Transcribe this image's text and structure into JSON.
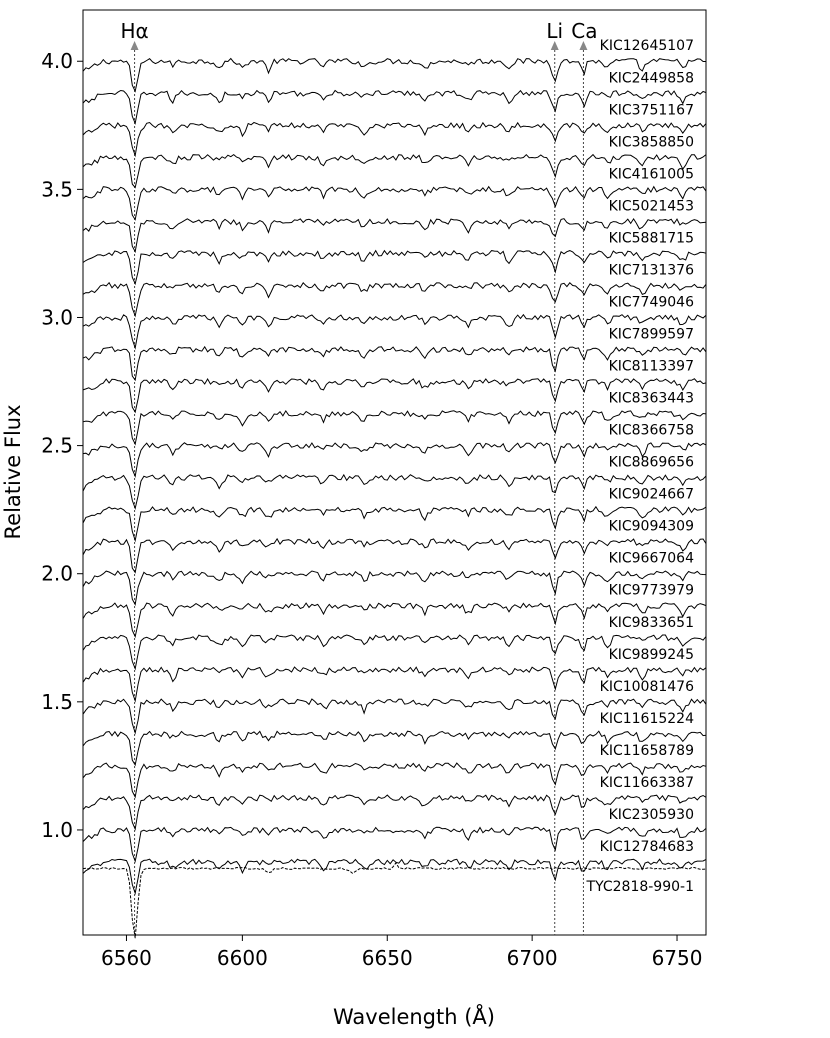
{
  "chart_data": {
    "type": "line",
    "title": "",
    "xlabel": "Wavelength (Å)",
    "ylabel": "Relative Flux",
    "xlim": [
      6545,
      6760
    ],
    "ylim": [
      0.59,
      4.2
    ],
    "x_ticks": [
      6560,
      6600,
      6650,
      6700,
      6750
    ],
    "y_ticks": [
      1.0,
      1.5,
      2.0,
      2.5,
      3.0,
      3.5,
      4.0
    ],
    "y_tick_labels": [
      "1.0",
      "1.5",
      "2.0",
      "2.5",
      "3.0",
      "3.5",
      "4.0"
    ],
    "grid": false,
    "legend": "none",
    "line_markers": [
      {
        "label": "Hα",
        "wavelength": 6562.8
      },
      {
        "label": "Li",
        "wavelength": 6707.8
      },
      {
        "label": "Ca",
        "wavelength": 6717.7
      }
    ],
    "series": [
      {
        "name": "KIC12645107",
        "baseline": 4.0
      },
      {
        "name": "KIC2449858",
        "baseline": 3.875
      },
      {
        "name": "KIC3751167",
        "baseline": 3.75
      },
      {
        "name": "KIC3858850",
        "baseline": 3.625
      },
      {
        "name": "KIC4161005",
        "baseline": 3.5
      },
      {
        "name": "KIC5021453",
        "baseline": 3.375
      },
      {
        "name": "KIC5881715",
        "baseline": 3.25
      },
      {
        "name": "KIC7131376",
        "baseline": 3.125
      },
      {
        "name": "KIC7749046",
        "baseline": 3.0
      },
      {
        "name": "KIC7899597",
        "baseline": 2.875
      },
      {
        "name": "KIC8113397",
        "baseline": 2.75
      },
      {
        "name": "KIC8363443",
        "baseline": 2.625
      },
      {
        "name": "KIC8366758",
        "baseline": 2.5
      },
      {
        "name": "KIC8869656",
        "baseline": 2.375
      },
      {
        "name": "KIC9024667",
        "baseline": 2.25
      },
      {
        "name": "KIC9094309",
        "baseline": 2.125
      },
      {
        "name": "KIC9667064",
        "baseline": 2.0
      },
      {
        "name": "KIC9773979",
        "baseline": 1.875
      },
      {
        "name": "KIC9833651",
        "baseline": 1.75
      },
      {
        "name": "KIC9899245",
        "baseline": 1.625
      },
      {
        "name": "KIC10081476",
        "baseline": 1.5
      },
      {
        "name": "KIC11615224",
        "baseline": 1.375
      },
      {
        "name": "KIC11658789",
        "baseline": 1.25
      },
      {
        "name": "KIC11663387",
        "baseline": 1.125
      },
      {
        "name": "KIC2305930",
        "baseline": 1.0
      },
      {
        "name": "KIC12784683",
        "baseline": 0.875
      },
      {
        "name": "TYC2818-990-1",
        "baseline": 0.85,
        "style": "dashed"
      }
    ]
  }
}
